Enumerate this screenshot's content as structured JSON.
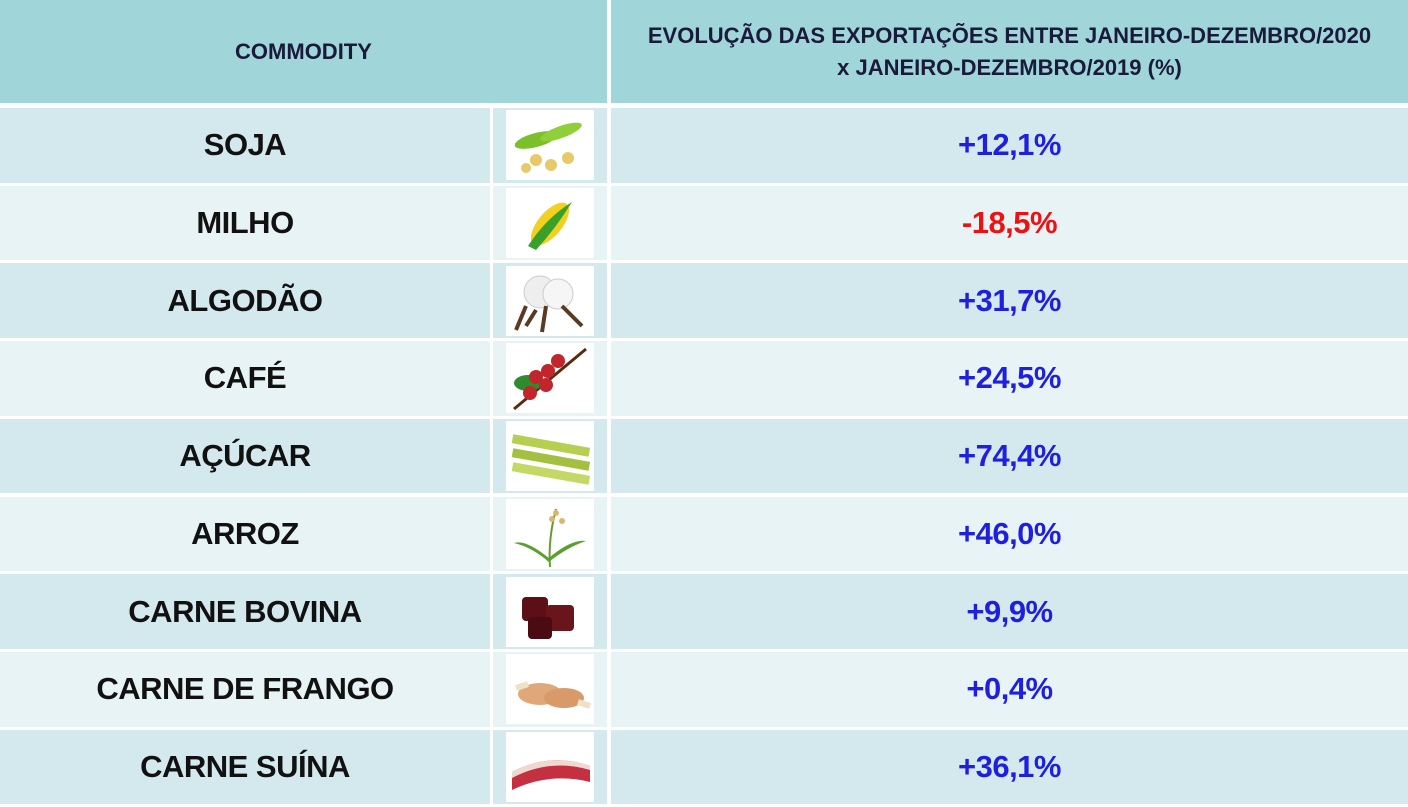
{
  "table": {
    "header": [
      "COMMODITY",
      "EVOLUÇÃO DAS  EXPORTAÇÕES ENTRE JANEIRO-DEZEMBRO/2020 x JANEIRO-DEZEMBRO/2019 (%)"
    ],
    "rows": [
      [
        "SOJA",
        "+12,1%"
      ],
      [
        "MILHO",
        "-18,5%"
      ],
      [
        "ALGODÃO",
        "+31,7%"
      ],
      [
        "CAFÉ",
        "+24,5%"
      ],
      [
        "AÇÚCAR",
        "+74,4%"
      ],
      [
        "ARROZ",
        "+46,0%"
      ],
      [
        "CARNE BOVINA",
        "+9,9%"
      ],
      [
        "CARNE DE FRANGO",
        "+0,4%"
      ],
      [
        "CARNE SUÍNA",
        "+36,1%"
      ]
    ]
  }
}
